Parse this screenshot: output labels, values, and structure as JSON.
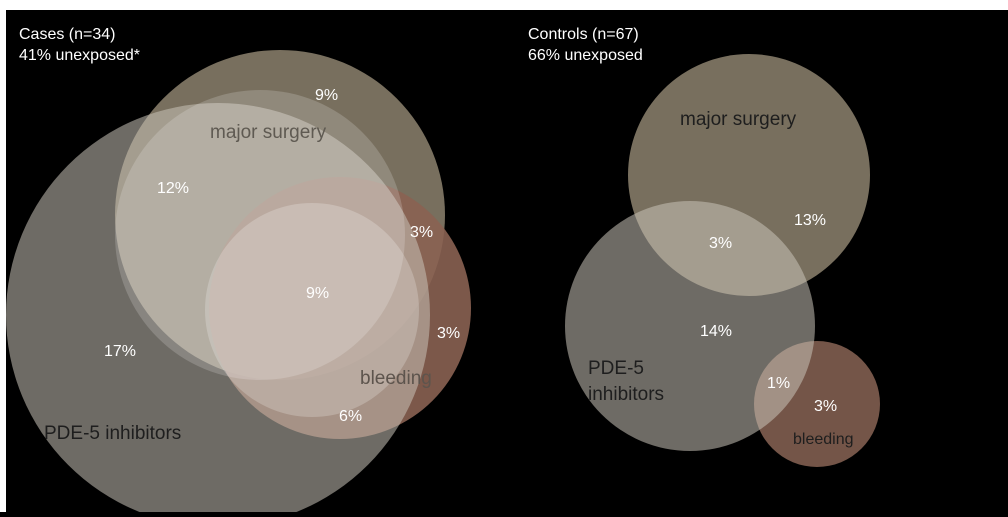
{
  "colors": {
    "background": "#000000",
    "major_surgery": "#7e7563",
    "pde5": "#c9c3b8",
    "bleeding": "#7a5a4c",
    "text_light": "#ffffff",
    "text_dark": "#222222"
  },
  "cases": {
    "title": "Cases (n=34)",
    "subtitle": "41% unexposed*",
    "labels": {
      "major_surgery": "major surgery",
      "pde5": "PDE-5 inhibitors",
      "bleeding": "bleeding"
    },
    "percents": {
      "surgery_only": "9%",
      "surgery_pde5": "12%",
      "surgery_bleeding": "3%",
      "all_three": "9%",
      "bleeding_only": "3%",
      "pde5_only": "17%",
      "pde5_bleeding": "6%"
    }
  },
  "controls": {
    "title": "Controls (n=67)",
    "subtitle": "66% unexposed",
    "labels": {
      "major_surgery": "major surgery",
      "pde5_line1": "PDE-5",
      "pde5_line2": "inhibitors",
      "bleeding": "bleeding"
    },
    "percents": {
      "surgery_only": "13%",
      "surgery_pde5": "3%",
      "pde5_only": "14%",
      "pde5_bleeding": "1%",
      "bleeding_only": "3%"
    }
  }
}
